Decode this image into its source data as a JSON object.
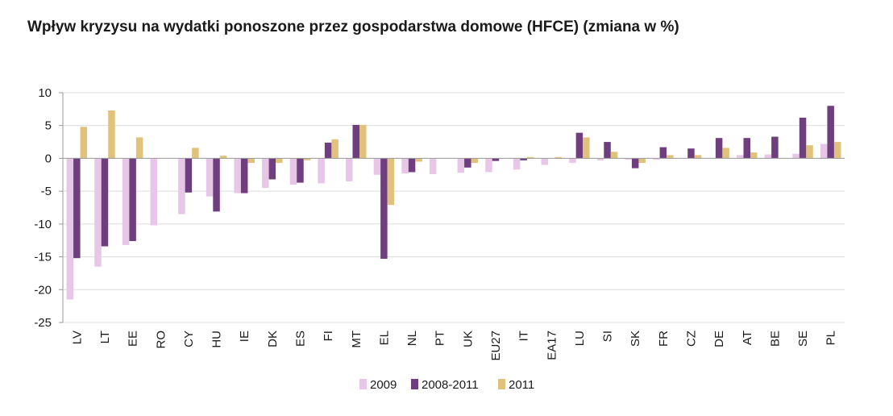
{
  "chart_data": {
    "type": "bar",
    "title": "Wpływ kryzysu na wydatki ponoszone przez gospodarstwa domowe (HFCE) (zmiana w %)",
    "xlabel": "",
    "ylabel": "",
    "ylim": [
      -25,
      10
    ],
    "yticks": [
      10,
      5,
      0,
      -5,
      -10,
      -15,
      -20,
      -25
    ],
    "grid": true,
    "legend_position": "bottom",
    "categories": [
      "LV",
      "LT",
      "EE",
      "RO",
      "CY",
      "HU",
      "IE",
      "DK",
      "ES",
      "FI",
      "MT",
      "EL",
      "NL",
      "PT",
      "UK",
      "EU27",
      "IT",
      "EA17",
      "LU",
      "SI",
      "SK",
      "FR",
      "CZ",
      "DE",
      "AT",
      "BE",
      "SE",
      "PL"
    ],
    "series": [
      {
        "name": "2009",
        "color": "#e8c6e8",
        "values": [
          -21.5,
          -16.5,
          -13.2,
          -10.2,
          -8.5,
          -5.8,
          -5.3,
          -4.5,
          -4.0,
          -3.8,
          -3.5,
          -2.5,
          -2.3,
          -2.4,
          -2.2,
          -2.1,
          -1.7,
          -1.0,
          -0.7,
          -0.3,
          -0.2,
          -0.2,
          0.0,
          0.0,
          0.5,
          0.6,
          0.7,
          2.2
        ]
      },
      {
        "name": "2008-2011",
        "color": "#6e3e7e",
        "values": [
          -15.2,
          -13.4,
          -12.6,
          0.0,
          -5.2,
          -8.1,
          -5.3,
          -3.2,
          -3.7,
          2.4,
          5.1,
          -15.3,
          -2.1,
          0.0,
          -1.4,
          -0.4,
          -0.3,
          0.0,
          3.9,
          2.5,
          -1.5,
          1.7,
          1.5,
          3.1,
          3.1,
          3.3,
          6.2,
          8.0
        ]
      },
      {
        "name": "2011",
        "color": "#e0c27c",
        "values": [
          4.8,
          7.3,
          3.2,
          0.0,
          1.6,
          0.4,
          -0.7,
          -0.7,
          -0.3,
          2.9,
          5.1,
          -7.1,
          -0.5,
          0.0,
          -0.7,
          0.0,
          0.2,
          0.2,
          3.2,
          1.0,
          -0.7,
          0.5,
          0.5,
          1.6,
          0.9,
          0.0,
          2.0,
          2.5
        ]
      }
    ]
  }
}
